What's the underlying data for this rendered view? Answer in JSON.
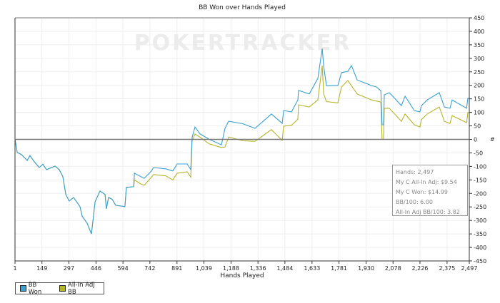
{
  "chart_data": {
    "type": "line",
    "title": "BB Won over Hands Played",
    "xlabel": "Hands Played",
    "ylabel": "#",
    "xlim": [
      1,
      2497
    ],
    "ylim": [
      -450,
      450
    ],
    "x_ticks": [
      "1",
      "149",
      "297",
      "446",
      "594",
      "742",
      "891",
      "1,039",
      "1,188",
      "1,336",
      "1,484",
      "1,633",
      "1,781",
      "1,930",
      "2,078",
      "2,226",
      "2,375",
      "2,497"
    ],
    "x_tick_values": [
      1,
      149,
      297,
      446,
      594,
      742,
      891,
      1039,
      1188,
      1336,
      1484,
      1633,
      1781,
      1930,
      2078,
      2226,
      2375,
      2497
    ],
    "y_ticks": [
      450,
      400,
      350,
      300,
      250,
      200,
      150,
      100,
      50,
      0,
      -50,
      -100,
      -150,
      -200,
      -250,
      -300,
      -350,
      -400,
      -450
    ],
    "grid": true,
    "legend_position": "bottom-left",
    "watermark": "POKERTRACKER",
    "series": [
      {
        "name": "BB Won",
        "color": "#3a9fd1",
        "points": [
          [
            1,
            0
          ],
          [
            13,
            -48
          ],
          [
            36,
            -56
          ],
          [
            68,
            -78
          ],
          [
            83,
            -60
          ],
          [
            107,
            -83
          ],
          [
            134,
            -104
          ],
          [
            154,
            -92
          ],
          [
            174,
            -112
          ],
          [
            221,
            -99
          ],
          [
            244,
            -112
          ],
          [
            264,
            -138
          ],
          [
            280,
            -204
          ],
          [
            299,
            -228
          ],
          [
            323,
            -215
          ],
          [
            358,
            -249
          ],
          [
            370,
            -284
          ],
          [
            397,
            -310
          ],
          [
            421,
            -350
          ],
          [
            429,
            -302
          ],
          [
            441,
            -231
          ],
          [
            468,
            -191
          ],
          [
            496,
            -204
          ],
          [
            503,
            -257
          ],
          [
            515,
            -215
          ],
          [
            535,
            -222
          ],
          [
            554,
            -244
          ],
          [
            605,
            -249
          ],
          [
            613,
            -178
          ],
          [
            653,
            -175
          ],
          [
            657,
            -125
          ],
          [
            692,
            -138
          ],
          [
            711,
            -144
          ],
          [
            751,
            -117
          ],
          [
            762,
            -104
          ],
          [
            829,
            -109
          ],
          [
            868,
            -117
          ],
          [
            892,
            -91
          ],
          [
            947,
            -91
          ],
          [
            967,
            -112
          ],
          [
            974,
            7
          ],
          [
            990,
            46
          ],
          [
            1018,
            20
          ],
          [
            1069,
            0
          ],
          [
            1135,
            -20
          ],
          [
            1155,
            41
          ],
          [
            1175,
            67
          ],
          [
            1253,
            58
          ],
          [
            1320,
            41
          ],
          [
            1410,
            94
          ],
          [
            1469,
            59
          ],
          [
            1477,
            107
          ],
          [
            1520,
            102
          ],
          [
            1555,
            146
          ],
          [
            1559,
            181
          ],
          [
            1618,
            168
          ],
          [
            1665,
            226
          ],
          [
            1689,
            336
          ],
          [
            1697,
            270
          ],
          [
            1712,
            199
          ],
          [
            1775,
            199
          ],
          [
            1795,
            247
          ],
          [
            1830,
            252
          ],
          [
            1850,
            273
          ],
          [
            1881,
            220
          ],
          [
            1960,
            199
          ],
          [
            1987,
            194
          ],
          [
            2011,
            180
          ],
          [
            2018,
            54
          ],
          [
            2026,
            54
          ],
          [
            2030,
            165
          ],
          [
            2058,
            173
          ],
          [
            2124,
            125
          ],
          [
            2144,
            160
          ],
          [
            2195,
            107
          ],
          [
            2226,
            102
          ],
          [
            2234,
            125
          ],
          [
            2266,
            146
          ],
          [
            2332,
            173
          ],
          [
            2360,
            120
          ],
          [
            2391,
            115
          ],
          [
            2403,
            146
          ],
          [
            2482,
            115
          ],
          [
            2489,
            152
          ],
          [
            2497,
            152
          ]
        ]
      },
      {
        "name": "All-In Adj BB",
        "color": "#b5b52a",
        "points": [
          [
            1,
            0
          ],
          [
            13,
            -48
          ],
          [
            36,
            -56
          ],
          [
            68,
            -78
          ],
          [
            83,
            -60
          ],
          [
            107,
            -83
          ],
          [
            134,
            -104
          ],
          [
            154,
            -92
          ],
          [
            174,
            -112
          ],
          [
            221,
            -99
          ],
          [
            244,
            -112
          ],
          [
            264,
            -138
          ],
          [
            280,
            -204
          ],
          [
            299,
            -228
          ],
          [
            323,
            -215
          ],
          [
            358,
            -249
          ],
          [
            370,
            -284
          ],
          [
            397,
            -310
          ],
          [
            421,
            -350
          ],
          [
            429,
            -302
          ],
          [
            441,
            -231
          ],
          [
            468,
            -191
          ],
          [
            496,
            -204
          ],
          [
            503,
            -257
          ],
          [
            515,
            -215
          ],
          [
            535,
            -222
          ],
          [
            554,
            -244
          ],
          [
            605,
            -249
          ],
          [
            613,
            -178
          ],
          [
            653,
            -175
          ],
          [
            657,
            -150
          ],
          [
            692,
            -165
          ],
          [
            711,
            -170
          ],
          [
            751,
            -140
          ],
          [
            762,
            -130
          ],
          [
            829,
            -135
          ],
          [
            868,
            -150
          ],
          [
            892,
            -125
          ],
          [
            947,
            -120
          ],
          [
            967,
            -140
          ],
          [
            974,
            -5
          ],
          [
            990,
            20
          ],
          [
            1018,
            8
          ],
          [
            1069,
            -17
          ],
          [
            1135,
            -30
          ],
          [
            1155,
            -28
          ],
          [
            1175,
            9
          ],
          [
            1253,
            -5
          ],
          [
            1320,
            -7
          ],
          [
            1410,
            36
          ],
          [
            1469,
            -4
          ],
          [
            1477,
            49
          ],
          [
            1520,
            52
          ],
          [
            1555,
            75
          ],
          [
            1559,
            128
          ],
          [
            1618,
            120
          ],
          [
            1665,
            146
          ],
          [
            1689,
            273
          ],
          [
            1697,
            168
          ],
          [
            1712,
            140
          ],
          [
            1775,
            135
          ],
          [
            1795,
            194
          ],
          [
            1830,
            218
          ],
          [
            1881,
            168
          ],
          [
            1960,
            146
          ],
          [
            2011,
            138
          ],
          [
            2018,
            0
          ],
          [
            2026,
            0
          ],
          [
            2030,
            115
          ],
          [
            2058,
            115
          ],
          [
            2124,
            67
          ],
          [
            2144,
            94
          ],
          [
            2195,
            54
          ],
          [
            2226,
            46
          ],
          [
            2234,
            73
          ],
          [
            2266,
            94
          ],
          [
            2332,
            120
          ],
          [
            2360,
            67
          ],
          [
            2391,
            59
          ],
          [
            2403,
            88
          ],
          [
            2482,
            62
          ],
          [
            2489,
            99
          ],
          [
            2497,
            99
          ]
        ]
      }
    ]
  },
  "tooltip": {
    "hands": "Hands: 2,497",
    "all_in_adj": "My C All-In Adj: $9.54",
    "won": "My C Won: $14.99",
    "bb100": "BB/100: 6.00",
    "all_in_bb100": "All-In Adj BB/100: 3.82"
  }
}
